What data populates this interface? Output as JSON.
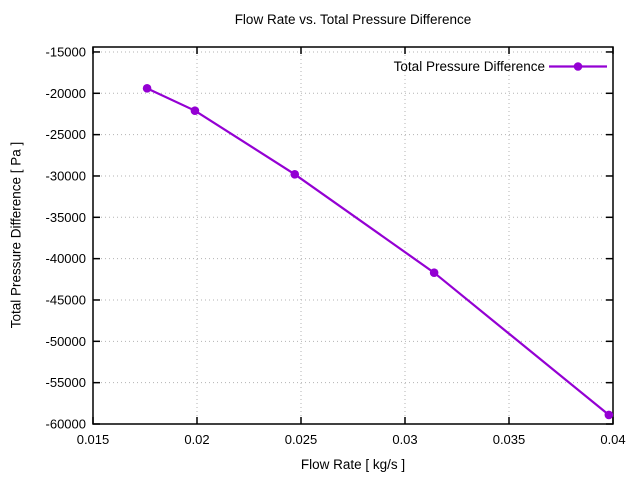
{
  "chart_data": {
    "type": "line",
    "title": "Flow Rate vs. Total Pressure Difference",
    "xlabel": "Flow Rate [ kg/s ]",
    "ylabel": "Total Pressure Difference [ Pa ]",
    "legend": {
      "position": "top-right-inside",
      "entries": [
        "Total Pressure Difference"
      ]
    },
    "series": [
      {
        "name": "Total Pressure Difference",
        "color": "#9400D3",
        "marker": "filled-circle",
        "x": [
          0.0176,
          0.0199,
          0.0247,
          0.0314,
          0.0398
        ],
        "y": [
          -19400,
          -22100,
          -29800,
          -41700,
          -58900
        ]
      }
    ],
    "xlim": [
      0.015,
      0.04
    ],
    "ylim": [
      -60000,
      -14400
    ],
    "xticks": {
      "values": [
        0.015,
        0.02,
        0.025,
        0.03,
        0.035,
        0.04
      ],
      "labels": [
        "0.015",
        "0.02",
        "0.025",
        "0.03",
        "0.035",
        "0.04"
      ]
    },
    "yticks": {
      "values": [
        -15000,
        -20000,
        -25000,
        -30000,
        -35000,
        -40000,
        -45000,
        -50000,
        -55000,
        -60000
      ],
      "labels": [
        "-15000",
        "-20000",
        "-25000",
        "-30000",
        "-35000",
        "-40000",
        "-45000",
        "-50000",
        "-55000",
        "-60000"
      ]
    },
    "grid": true,
    "grid_style": "dotted",
    "colors": {
      "line": "#9400D3",
      "border": "#000000",
      "text": "#000000",
      "grid": "#b3b3b3",
      "background": "#ffffff"
    }
  }
}
